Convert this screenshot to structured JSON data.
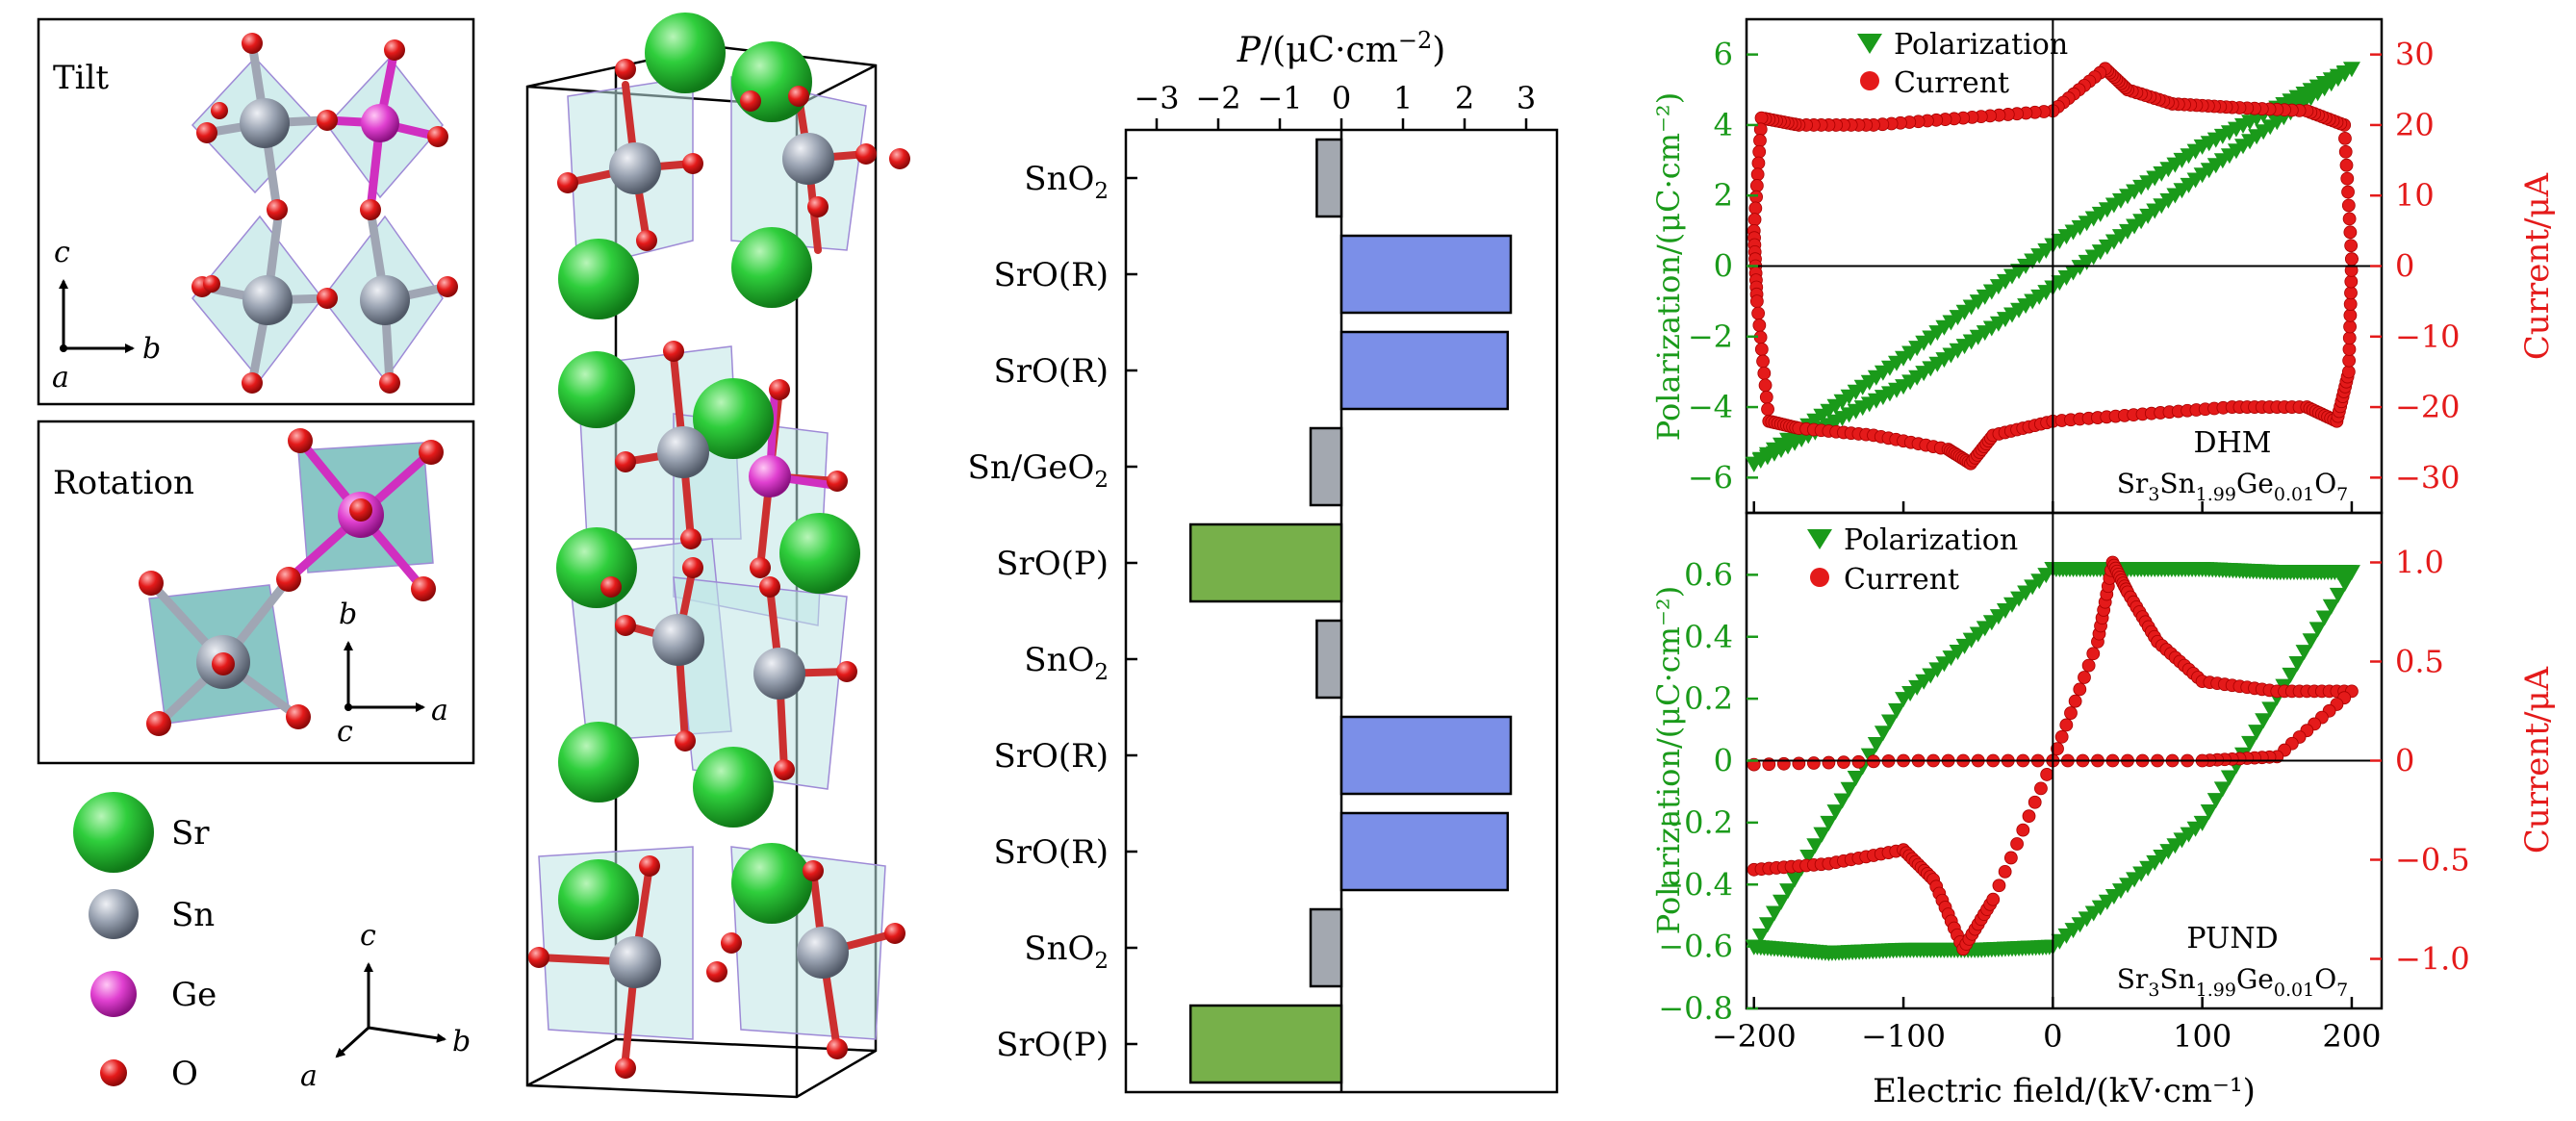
{
  "colors": {
    "sr": "#2fce3c",
    "sn": "#9aa3b2",
    "ge": "#e040d0",
    "o": "#e41a1a",
    "octa": "#bfe6e6",
    "octa_edge": "#9e8ad6",
    "bond_sn": "#a0a6b4",
    "bond_o": "#cc3030",
    "bar_pos": "#7b8fe8",
    "bar_neg": "#77b04a",
    "bar_small": "#a3a8b0",
    "pol": "#1a9a1a",
    "cur": "#e41a1a"
  },
  "panel_a": {
    "tilt_label": "Tilt",
    "rotation_label": "Rotation",
    "tilt_axes": {
      "vertical": "c",
      "horizontal": "b",
      "depth": "a"
    },
    "rotation_axes": {
      "vertical": "b",
      "horizontal": "a",
      "depth": "c"
    },
    "legend": [
      {
        "symbol": "Sr",
        "color": "#2fce3c"
      },
      {
        "symbol": "Sn",
        "color": "#9aa3b2"
      },
      {
        "symbol": "Ge",
        "color": "#e040d0"
      },
      {
        "symbol": "O",
        "color": "#e41a1a"
      }
    ],
    "axes3d": {
      "c": "c",
      "b": "b",
      "a": "a"
    }
  },
  "panel_c": {
    "axis_title_italic": "P",
    "axis_title_rest": "/(μC·cm",
    "axis_title_exp": "−2",
    "axis_title_close": ")",
    "ticks": [
      "−3",
      "−2",
      "−1",
      "0",
      "1",
      "2",
      "3"
    ],
    "layers": [
      {
        "base": "SnO",
        "sub": "2",
        "suffix": "",
        "value": -0.4,
        "kind": "small"
      },
      {
        "base": "SrO(R)",
        "sub": "",
        "suffix": "",
        "value": 2.75,
        "kind": "pos"
      },
      {
        "base": "SrO(R)",
        "sub": "",
        "suffix": "",
        "value": 2.7,
        "kind": "pos"
      },
      {
        "base": "Sn/GeO",
        "sub": "2",
        "suffix": "",
        "value": -0.5,
        "kind": "small"
      },
      {
        "base": "SrO(P)",
        "sub": "",
        "suffix": "",
        "value": -2.45,
        "kind": "neg"
      },
      {
        "base": "SnO",
        "sub": "2",
        "suffix": "",
        "value": -0.4,
        "kind": "small"
      },
      {
        "base": "SrO(R)",
        "sub": "",
        "suffix": "",
        "value": 2.75,
        "kind": "pos"
      },
      {
        "base": "SrO(R)",
        "sub": "",
        "suffix": "",
        "value": 2.7,
        "kind": "pos"
      },
      {
        "base": "SnO",
        "sub": "2",
        "suffix": "",
        "value": -0.5,
        "kind": "small"
      },
      {
        "base": "SrO(P)",
        "sub": "",
        "suffix": "",
        "value": -2.45,
        "kind": "neg"
      }
    ]
  },
  "chart_data": [
    {
      "type": "line",
      "title": "DHM",
      "compound": {
        "a": "Sr",
        "a_sub": "3",
        "b": "Sn",
        "b_sub": "1.99",
        "c": "Ge",
        "c_sub": "0.01",
        "d": "O",
        "d_sub": "7"
      },
      "legend": [
        "Polarization",
        "Current"
      ],
      "xlabel": "Electric field/(kV·cm⁻¹)",
      "ylabel": "Polarization/(μC·cm⁻²)",
      "y2label": "Current/μA",
      "xlim": [
        -205,
        220
      ],
      "ylim": [
        -7,
        7
      ],
      "y2lim": [
        -35,
        35
      ],
      "xticks": [
        "−200",
        "−100",
        "0",
        "100",
        "200"
      ],
      "yticks": [
        "6",
        "4",
        "2",
        "0",
        "−2",
        "−4",
        "−6"
      ],
      "y2ticks": [
        "30",
        "20",
        "10",
        "0",
        "−10",
        "−20",
        "−30"
      ],
      "series": [
        {
          "name": "Polarization",
          "axis": "left",
          "x": [
            -200,
            -100,
            0,
            100,
            200,
            100,
            0,
            -100,
            -200
          ],
          "y": [
            -5.6,
            -2.6,
            0.6,
            3.4,
            5.6,
            2.6,
            -0.6,
            -3.4,
            -5.6
          ]
        },
        {
          "name": "Current",
          "axis": "right",
          "x": [
            200,
            195,
            170,
            120,
            80,
            50,
            35,
            0,
            -60,
            -120,
            -170,
            -195,
            -200,
            -198,
            -190,
            -170,
            -120,
            -70,
            -55,
            -40,
            0,
            60,
            120,
            170,
            190,
            198,
            200
          ],
          "y": [
            1,
            20,
            22,
            22.5,
            23,
            25,
            28,
            22,
            21,
            20,
            20,
            21,
            5,
            -5,
            -22,
            -23,
            -24,
            -26,
            -28,
            -24,
            -22,
            -21,
            -20,
            -20,
            -22,
            -15,
            1
          ]
        }
      ]
    },
    {
      "type": "line",
      "title": "PUND",
      "compound": {
        "a": "Sr",
        "a_sub": "3",
        "b": "Sn",
        "b_sub": "1.99",
        "c": "Ge",
        "c_sub": "0.01",
        "d": "O",
        "d_sub": "7"
      },
      "legend": [
        "Polarization",
        "Current"
      ],
      "xlabel": "Electric field/(kV·cm⁻¹)",
      "ylabel": "Polarization/(μC·cm⁻²)",
      "y2label": "Current/μA",
      "xlim": [
        -205,
        220
      ],
      "ylim": [
        -0.8,
        0.8
      ],
      "y2lim": [
        -1.25,
        1.25
      ],
      "xticks": [
        "−200",
        "−100",
        "0",
        "100",
        "200"
      ],
      "yticks": [
        "0.6",
        "0.4",
        "0.2",
        "0",
        "−0.2",
        "−0.4",
        "−0.6",
        "−0.8"
      ],
      "y2ticks": [
        "1.0",
        "0.5",
        "0",
        "−0.5",
        "−1.0"
      ],
      "series": [
        {
          "name": "Polarization",
          "axis": "left",
          "x": [
            -200,
            -150,
            -100,
            -50,
            0,
            100,
            200,
            150,
            100,
            50,
            0,
            -100,
            -200
          ],
          "y": [
            -0.6,
            -0.62,
            -0.61,
            -0.61,
            -0.6,
            -0.2,
            0.61,
            0.61,
            0.62,
            0.62,
            0.62,
            0.2,
            -0.6
          ]
        },
        {
          "name": "Current",
          "axis": "right",
          "x": [
            -200,
            -150,
            -100,
            -80,
            -60,
            -40,
            0,
            30,
            40,
            50,
            70,
            100,
            150,
            200,
            150,
            100,
            0,
            -100,
            -200
          ],
          "y": [
            -0.55,
            -0.52,
            -0.45,
            -0.6,
            -0.95,
            -0.7,
            0.0,
            0.6,
            1.0,
            0.85,
            0.6,
            0.4,
            0.35,
            0.35,
            0.02,
            0.0,
            0.0,
            0.0,
            -0.02
          ]
        }
      ]
    }
  ]
}
